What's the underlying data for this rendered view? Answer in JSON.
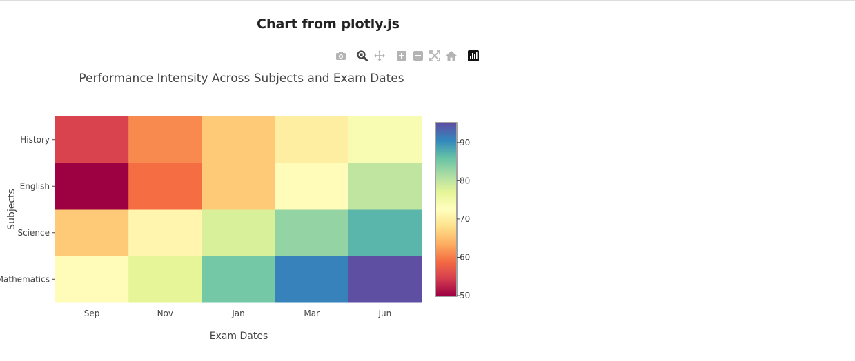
{
  "page": {
    "title": "Chart from plotly.js"
  },
  "modebar": {
    "buttons": [
      {
        "name": "camera-icon",
        "label": "Download plot as a png"
      },
      {
        "name": "zoom-icon",
        "label": "Zoom"
      },
      {
        "name": "pan-icon",
        "label": "Pan"
      },
      {
        "name": "zoom-in-icon",
        "label": "Zoom in"
      },
      {
        "name": "zoom-out-icon",
        "label": "Zoom out"
      },
      {
        "name": "autoscale-icon",
        "label": "Autoscale"
      },
      {
        "name": "home-icon",
        "label": "Reset axes"
      },
      {
        "name": "plotly-logo-icon",
        "label": "Produced with Plotly"
      }
    ]
  },
  "chart_data": {
    "type": "heatmap",
    "title": "Performance Intensity Across Subjects and Exam Dates",
    "xlabel": "Exam Dates",
    "ylabel": "Subjects",
    "x": [
      "Sep",
      "Nov",
      "Jan",
      "Mar",
      "Jun"
    ],
    "y": [
      "Mathematics",
      "Science",
      "English",
      "History"
    ],
    "z": [
      [
        72,
        77,
        85,
        91,
        95
      ],
      [
        66,
        71,
        78,
        83,
        87
      ],
      [
        50,
        59,
        66,
        72,
        80
      ],
      [
        55,
        61,
        66,
        70,
        74
      ]
    ],
    "colorscale": "Spectral",
    "zmin": 50,
    "zmax": 95,
    "colorbar": {
      "ticks": [
        50,
        60,
        70,
        80,
        90
      ]
    }
  }
}
